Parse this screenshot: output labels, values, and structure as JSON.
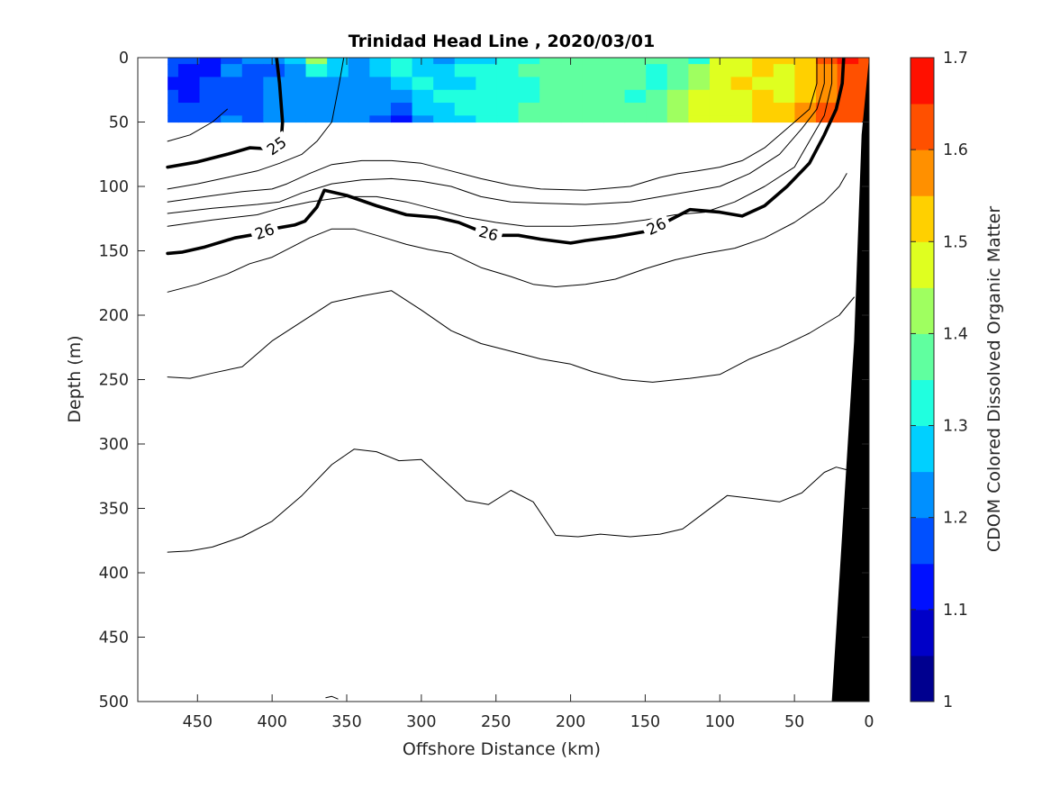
{
  "chart_data": {
    "type": "heatmap",
    "title": "Trinidad Head Line , 2020/03/01",
    "xlabel": "Offshore Distance (km)",
    "ylabel": "Depth (m)",
    "colorbar_label": "CDOM Colored Dissolved Organic Matter",
    "xlim": [
      490,
      0
    ],
    "ylim": [
      0,
      500
    ],
    "x_reversed": true,
    "y_reversed": true,
    "grid": false,
    "x_ticks": [
      450,
      400,
      350,
      300,
      250,
      200,
      150,
      100,
      50,
      0
    ],
    "y_ticks": [
      0,
      50,
      100,
      150,
      200,
      250,
      300,
      350,
      400,
      450,
      500
    ],
    "colorbar": {
      "range": [
        1,
        1.7
      ],
      "ticks": [
        1,
        1.1,
        1.2,
        1.3,
        1.4,
        1.5,
        1.6,
        1.7
      ],
      "levels": [
        1.0,
        1.05,
        1.1,
        1.15,
        1.2,
        1.25,
        1.3,
        1.35,
        1.4,
        1.45,
        1.5,
        1.55,
        1.6,
        1.65,
        1.7
      ],
      "colors": [
        "#00008f",
        "#0000c8",
        "#0010ff",
        "#0050ff",
        "#0090ff",
        "#00d0ff",
        "#20ffdf",
        "#60ff9f",
        "#9fff60",
        "#dfff20",
        "#ffd000",
        "#ff9000",
        "#ff5000",
        "#ff1000",
        "#c80000"
      ]
    },
    "cdom_field": {
      "depth_range": [
        0,
        50
      ],
      "x_range": [
        470,
        0
      ],
      "rows": [
        {
          "depth": 0,
          "values": [
            1.17,
            1.15,
            1.13,
            1.18,
            1.22,
            1.2,
            1.25,
            1.4,
            1.28,
            1.24,
            1.27,
            1.3,
            1.26,
            1.24,
            1.26,
            1.28,
            1.33,
            1.3,
            1.36,
            1.38,
            1.38,
            1.36,
            1.37,
            1.35,
            1.37,
            1.33,
            1.47,
            1.48,
            1.5,
            1.5,
            1.52,
            1.6,
            1.67,
            1.64
          ]
        },
        {
          "depth": 10,
          "values": [
            1.15,
            1.13,
            1.14,
            1.2,
            1.17,
            1.19,
            1.22,
            1.3,
            1.25,
            1.22,
            1.26,
            1.3,
            1.28,
            1.27,
            1.3,
            1.31,
            1.32,
            1.35,
            1.38,
            1.36,
            1.37,
            1.39,
            1.36,
            1.34,
            1.37,
            1.4,
            1.48,
            1.49,
            1.5,
            1.49,
            1.52,
            1.58,
            1.64,
            1.6
          ]
        },
        {
          "depth": 20,
          "values": [
            1.14,
            1.12,
            1.15,
            1.18,
            1.15,
            1.2,
            1.23,
            1.24,
            1.23,
            1.21,
            1.23,
            1.26,
            1.3,
            1.28,
            1.29,
            1.32,
            1.34,
            1.33,
            1.37,
            1.35,
            1.38,
            1.37,
            1.35,
            1.34,
            1.38,
            1.43,
            1.47,
            1.5,
            1.49,
            1.48,
            1.53,
            1.57,
            1.62,
            1.61
          ]
        },
        {
          "depth": 30,
          "values": [
            1.16,
            1.14,
            1.17,
            1.17,
            1.16,
            1.21,
            1.24,
            1.22,
            1.24,
            1.22,
            1.21,
            1.24,
            1.28,
            1.3,
            1.31,
            1.33,
            1.31,
            1.34,
            1.36,
            1.37,
            1.39,
            1.36,
            1.34,
            1.36,
            1.4,
            1.45,
            1.47,
            1.48,
            1.5,
            1.49,
            1.54,
            1.58,
            1.63,
            1.62
          ]
        },
        {
          "depth": 40,
          "values": [
            1.17,
            1.15,
            1.16,
            1.19,
            1.18,
            1.22,
            1.22,
            1.21,
            1.22,
            1.23,
            1.2,
            1.16,
            1.25,
            1.29,
            1.3,
            1.31,
            1.33,
            1.36,
            1.35,
            1.36,
            1.37,
            1.36,
            1.35,
            1.38,
            1.42,
            1.46,
            1.47,
            1.49,
            1.51,
            1.5,
            1.55,
            1.6,
            1.64,
            1.63
          ]
        },
        {
          "depth": 50,
          "values": [
            1.16,
            1.16,
            1.17,
            1.2,
            1.19,
            1.21,
            1.21,
            1.2,
            1.21,
            1.24,
            1.15,
            1.13,
            1.22,
            1.27,
            1.29,
            1.32,
            1.34,
            1.35,
            1.35,
            1.37,
            1.37,
            1.35,
            1.36,
            1.39,
            1.43,
            1.46,
            1.48,
            1.49,
            1.5,
            1.51,
            1.56,
            1.6,
            1.63,
            1.62
          ]
        }
      ]
    },
    "density_contours": [
      {
        "level": "",
        "bold": false,
        "points": [
          [
            470,
            65
          ],
          [
            455,
            60
          ],
          [
            440,
            50
          ],
          [
            430,
            40
          ]
        ]
      },
      {
        "level": "25",
        "bold": true,
        "points": [
          [
            470,
            85
          ],
          [
            450,
            81
          ],
          [
            430,
            75
          ],
          [
            415,
            70
          ],
          [
            400,
            71
          ],
          [
            394,
            66
          ],
          [
            393,
            50
          ],
          [
            395,
            20
          ],
          [
            397,
            0
          ]
        ]
      },
      {
        "level": "",
        "bold": false,
        "points": [
          [
            470,
            102
          ],
          [
            450,
            98
          ],
          [
            430,
            93
          ],
          [
            410,
            88
          ],
          [
            395,
            82
          ],
          [
            380,
            75
          ],
          [
            370,
            65
          ],
          [
            360,
            50
          ],
          [
            355,
            20
          ],
          [
            352,
            0
          ]
        ]
      },
      {
        "level": "",
        "bold": false,
        "points": [
          [
            470,
            112
          ],
          [
            445,
            108
          ],
          [
            420,
            104
          ],
          [
            400,
            102
          ],
          [
            390,
            98
          ],
          [
            375,
            90
          ],
          [
            360,
            83
          ],
          [
            340,
            80
          ],
          [
            320,
            80
          ],
          [
            300,
            82
          ],
          [
            280,
            88
          ],
          [
            260,
            94
          ],
          [
            240,
            99
          ],
          [
            220,
            102
          ],
          [
            190,
            103
          ],
          [
            160,
            100
          ],
          [
            140,
            93
          ],
          [
            128,
            90
          ],
          [
            115,
            88
          ],
          [
            100,
            85
          ],
          [
            85,
            80
          ],
          [
            70,
            70
          ],
          [
            55,
            55
          ],
          [
            40,
            40
          ],
          [
            35,
            20
          ],
          [
            35,
            0
          ]
        ]
      },
      {
        "level": "",
        "bold": false,
        "points": [
          [
            470,
            121
          ],
          [
            440,
            117
          ],
          [
            410,
            114
          ],
          [
            395,
            112
          ],
          [
            380,
            105
          ],
          [
            360,
            98
          ],
          [
            340,
            95
          ],
          [
            320,
            94
          ],
          [
            300,
            96
          ],
          [
            280,
            100
          ],
          [
            260,
            108
          ],
          [
            240,
            112
          ],
          [
            220,
            113
          ],
          [
            190,
            114
          ],
          [
            160,
            112
          ],
          [
            140,
            108
          ],
          [
            120,
            104
          ],
          [
            100,
            100
          ],
          [
            80,
            90
          ],
          [
            60,
            75
          ],
          [
            45,
            55
          ],
          [
            35,
            40
          ],
          [
            30,
            20
          ],
          [
            30,
            0
          ]
        ]
      },
      {
        "level": "",
        "bold": false,
        "points": [
          [
            470,
            131
          ],
          [
            440,
            126
          ],
          [
            410,
            122
          ],
          [
            395,
            117
          ],
          [
            375,
            112
          ],
          [
            350,
            108
          ],
          [
            330,
            108
          ],
          [
            310,
            112
          ],
          [
            290,
            118
          ],
          [
            270,
            124
          ],
          [
            250,
            128
          ],
          [
            230,
            131
          ],
          [
            200,
            131
          ],
          [
            170,
            129
          ],
          [
            150,
            126
          ],
          [
            130,
            122
          ],
          [
            110,
            120
          ],
          [
            90,
            112
          ],
          [
            70,
            100
          ],
          [
            50,
            85
          ],
          [
            40,
            65
          ],
          [
            30,
            45
          ],
          [
            25,
            20
          ],
          [
            25,
            0
          ]
        ]
      },
      {
        "level": "26",
        "bold": true,
        "points": [
          [
            470,
            152
          ],
          [
            460,
            151
          ],
          [
            445,
            147
          ],
          [
            425,
            140
          ],
          [
            410,
            137
          ],
          [
            400,
            133
          ],
          [
            385,
            130
          ],
          [
            378,
            127
          ],
          [
            370,
            116
          ],
          [
            365,
            103
          ],
          [
            350,
            107
          ],
          [
            330,
            115
          ],
          [
            310,
            122
          ],
          [
            290,
            124
          ],
          [
            275,
            128
          ],
          [
            260,
            135
          ],
          [
            250,
            138
          ],
          [
            235,
            138
          ],
          [
            220,
            141
          ],
          [
            200,
            144
          ],
          [
            190,
            142
          ],
          [
            170,
            139
          ],
          [
            150,
            135
          ],
          [
            135,
            127
          ],
          [
            120,
            118
          ],
          [
            100,
            120
          ],
          [
            85,
            123
          ],
          [
            70,
            115
          ],
          [
            55,
            100
          ],
          [
            40,
            82
          ],
          [
            30,
            60
          ],
          [
            22,
            40
          ],
          [
            18,
            20
          ],
          [
            17,
            0
          ]
        ]
      },
      {
        "level": "",
        "bold": false,
        "points": [
          [
            470,
            182
          ],
          [
            450,
            176
          ],
          [
            430,
            168
          ],
          [
            415,
            160
          ],
          [
            400,
            155
          ],
          [
            385,
            146
          ],
          [
            375,
            140
          ],
          [
            360,
            133
          ],
          [
            345,
            133
          ],
          [
            330,
            138
          ],
          [
            310,
            145
          ],
          [
            295,
            149
          ],
          [
            280,
            152
          ],
          [
            260,
            163
          ],
          [
            240,
            170
          ],
          [
            225,
            176
          ],
          [
            210,
            178
          ],
          [
            190,
            176
          ],
          [
            170,
            172
          ],
          [
            150,
            164
          ],
          [
            130,
            157
          ],
          [
            110,
            152
          ],
          [
            90,
            148
          ],
          [
            70,
            140
          ],
          [
            50,
            128
          ],
          [
            30,
            112
          ],
          [
            20,
            100
          ],
          [
            15,
            90
          ]
        ]
      },
      {
        "level": "",
        "bold": false,
        "points": [
          [
            470,
            248
          ],
          [
            455,
            249
          ],
          [
            440,
            245
          ],
          [
            420,
            240
          ],
          [
            400,
            220
          ],
          [
            380,
            205
          ],
          [
            360,
            190
          ],
          [
            340,
            185
          ],
          [
            320,
            181
          ],
          [
            300,
            196
          ],
          [
            280,
            212
          ],
          [
            260,
            222
          ],
          [
            240,
            228
          ],
          [
            220,
            234
          ],
          [
            200,
            238
          ],
          [
            185,
            244
          ],
          [
            165,
            250
          ],
          [
            145,
            252
          ],
          [
            120,
            249
          ],
          [
            100,
            246
          ],
          [
            80,
            234
          ],
          [
            60,
            225
          ],
          [
            40,
            214
          ],
          [
            20,
            200
          ],
          [
            10,
            186
          ]
        ]
      },
      {
        "level": "",
        "bold": false,
        "points": [
          [
            470,
            384
          ],
          [
            455,
            383
          ],
          [
            440,
            380
          ],
          [
            420,
            372
          ],
          [
            400,
            360
          ],
          [
            380,
            340
          ],
          [
            360,
            316
          ],
          [
            345,
            304
          ],
          [
            330,
            306
          ],
          [
            315,
            313
          ],
          [
            300,
            312
          ],
          [
            285,
            328
          ],
          [
            270,
            344
          ],
          [
            255,
            347
          ],
          [
            240,
            336
          ],
          [
            225,
            345
          ],
          [
            210,
            371
          ],
          [
            195,
            372
          ],
          [
            180,
            370
          ],
          [
            160,
            372
          ],
          [
            140,
            370
          ],
          [
            125,
            366
          ],
          [
            110,
            353
          ],
          [
            95,
            340
          ],
          [
            80,
            342
          ],
          [
            60,
            345
          ],
          [
            45,
            338
          ],
          [
            30,
            322
          ],
          [
            22,
            318
          ],
          [
            15,
            320
          ]
        ]
      },
      {
        "level": "",
        "bold": false,
        "points": [
          [
            364,
            497
          ],
          [
            360,
            496
          ],
          [
            356,
            498
          ]
        ]
      }
    ],
    "bathymetry": {
      "label": "",
      "points": [
        [
          0,
          0
        ],
        [
          0,
          500
        ],
        [
          25,
          500
        ],
        [
          10,
          220
        ],
        [
          5,
          60
        ]
      ]
    }
  }
}
